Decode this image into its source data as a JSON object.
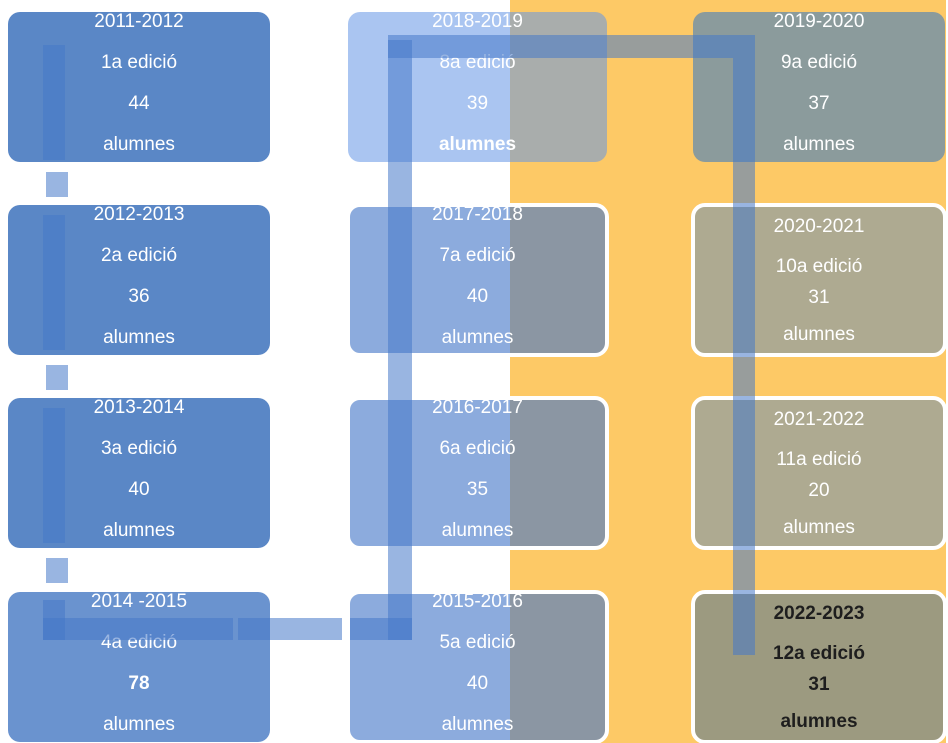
{
  "nodes": [
    {
      "year": "2011-2012",
      "edition": "1a edició",
      "count": "44",
      "unit": "alumnes"
    },
    {
      "year": "2012-2013",
      "edition": "2a edició",
      "count": "36",
      "unit": "alumnes"
    },
    {
      "year": "2013-2014",
      "edition": "3a edició",
      "count": "40",
      "unit": "alumnes"
    },
    {
      "year": "2014 -2015",
      "edition": "4a edició",
      "count": "78",
      "unit": "alumnes"
    },
    {
      "year": "2015-2016",
      "edition": "5a edició",
      "count": "40",
      "unit": "alumnes"
    },
    {
      "year": "2016-2017",
      "edition": "6a edició",
      "count": "35",
      "unit": "alumnes"
    },
    {
      "year": "2017-2018",
      "edition": "7a edició",
      "count": "40",
      "unit": "alumnes"
    },
    {
      "year": "2018-2019",
      "edition": "8a edició",
      "count": "39",
      "unit": "alumnes"
    },
    {
      "year": "2019-2020",
      "edition": "9a edició",
      "count": "37",
      "unit": "alumnes"
    },
    {
      "year": "2020-2021",
      "edition": "10a edició",
      "count": "31",
      "unit": "alumnes"
    },
    {
      "year": "2021-2022",
      "edition": "11a edició",
      "count": "20",
      "unit": "alumnes"
    },
    {
      "year": "2022-2023",
      "edition": "12a edició",
      "count": "31",
      "unit": "alumnes"
    }
  ]
}
